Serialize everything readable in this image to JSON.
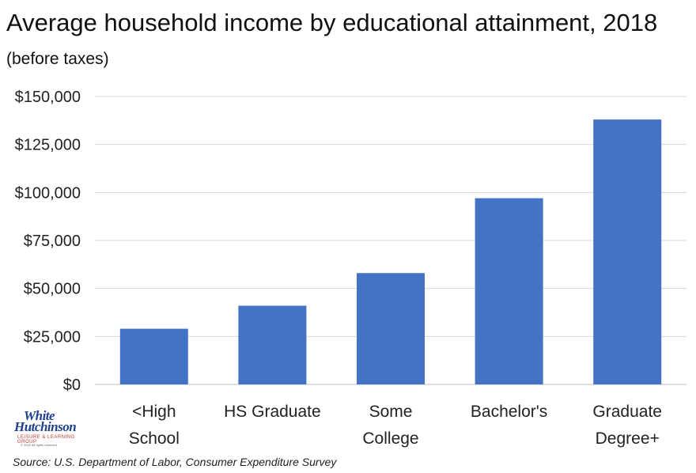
{
  "title": {
    "main": "Average household income by educational attainment, 2018",
    "sub": "(before taxes)"
  },
  "source": "Source: U.S. Department of Labor, Consumer Expenditure Survey",
  "logo": {
    "line1": "White",
    "line2": "Hutchinson",
    "line3": "LEISURE & LEARNING GROUP",
    "line4": "© 2019 All rights reserved"
  },
  "colors": {
    "bar": "#4472C4",
    "grid": "#d9d9d9",
    "text": "#222222"
  },
  "chart_data": {
    "type": "bar",
    "categories": [
      [
        "<High",
        "School"
      ],
      [
        "HS Graduate"
      ],
      [
        "Some",
        "College"
      ],
      [
        "Bachelor's"
      ],
      [
        "Graduate",
        "Degree+"
      ]
    ],
    "values": [
      29000,
      41000,
      58000,
      97000,
      138000
    ],
    "ylim": [
      0,
      150000
    ],
    "yticks": [
      0,
      25000,
      50000,
      75000,
      100000,
      125000,
      150000
    ],
    "ytick_labels": [
      "$0",
      "$25,000",
      "$50,000",
      "$75,000",
      "$100,000",
      "$125,000",
      "$150,000"
    ],
    "grid": true,
    "legend": "none"
  }
}
